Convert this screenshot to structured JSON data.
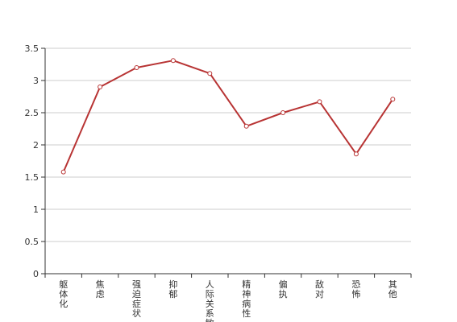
{
  "chart_data": {
    "type": "line",
    "title": "",
    "xlabel": "",
    "ylabel": "",
    "categories": [
      "躯体化",
      "焦虑",
      "强迫症状",
      "抑郁",
      "人际关系敏感",
      "精神病性",
      "偏执",
      "敌对",
      "恐怖",
      "其他"
    ],
    "series": [
      {
        "values": [
          1.58,
          2.9,
          3.2,
          3.31,
          3.11,
          2.29,
          2.5,
          2.67,
          1.86,
          2.71
        ]
      }
    ],
    "ylim": [
      0,
      3.5
    ],
    "yticks": [
      "0",
      "0.5",
      "1",
      "1.5",
      "2",
      "2.5",
      "3",
      "3.5"
    ],
    "grid": true,
    "legend": "none",
    "colors": {
      "line": "#b83434",
      "grid": "#cccccc",
      "axis": "#333333"
    }
  }
}
